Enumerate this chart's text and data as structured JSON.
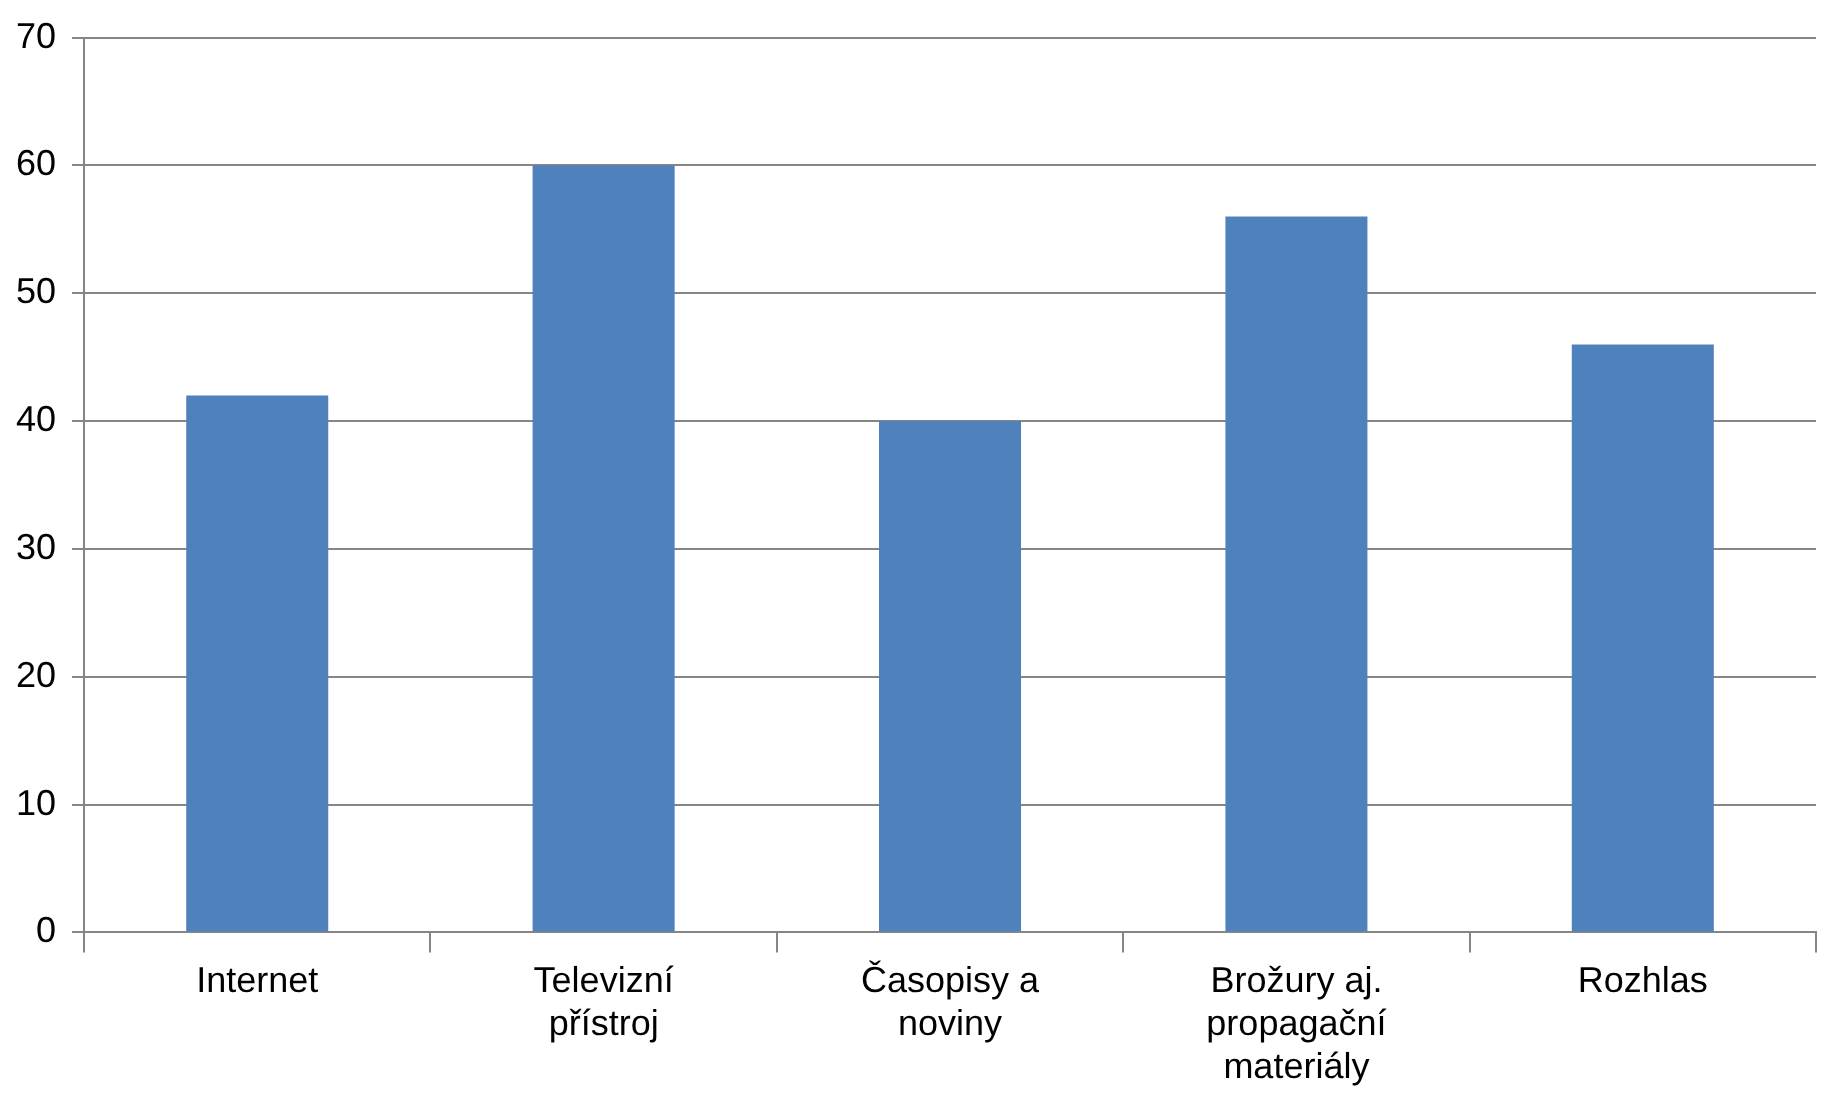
{
  "chart_data": {
    "type": "bar",
    "categories": [
      "Internet",
      "Televizní přístroj",
      "Časopisy a noviny",
      "Brožury aj. propagační materiály",
      "Rozhlas"
    ],
    "values": [
      42,
      60,
      40,
      56,
      46
    ],
    "color": "#4f81bd",
    "ylim": [
      0,
      70
    ],
    "yticks": [
      0,
      10,
      20,
      30,
      40,
      50,
      60,
      70
    ],
    "grid": "y",
    "legend": false
  }
}
